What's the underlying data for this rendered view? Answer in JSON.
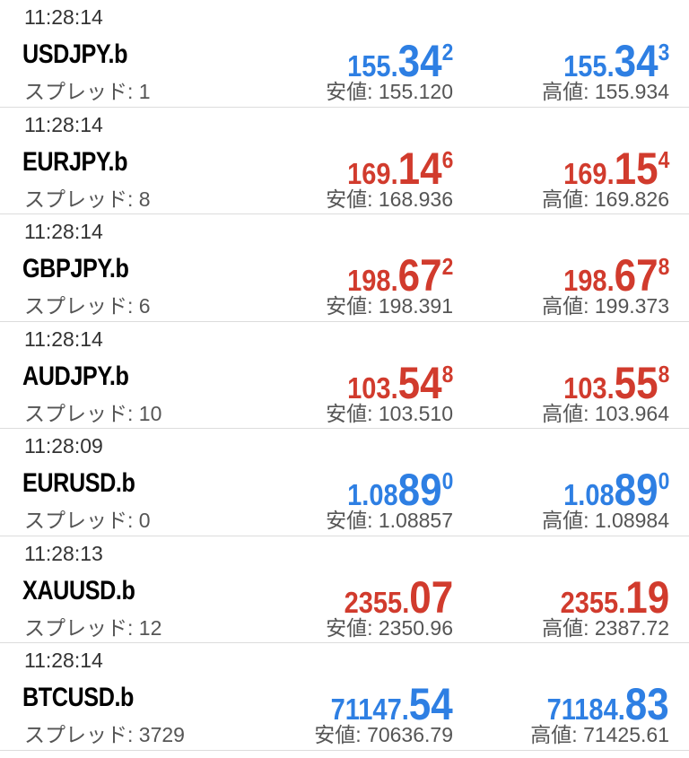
{
  "labels": {
    "spread": "スプレッド: ",
    "low": "安値: ",
    "high": "高値: "
  },
  "colors": {
    "up": "#2e7fe3",
    "down": "#d13b2d"
  },
  "quotes": [
    {
      "time": "11:28:14",
      "symbol": "USDJPY.b",
      "spread": "1",
      "direction": "up",
      "bid": {
        "small": "155.",
        "big": "34",
        "sup": "2"
      },
      "ask": {
        "small": "155.",
        "big": "34",
        "sup": "3"
      },
      "low": "155.120",
      "high": "155.934"
    },
    {
      "time": "11:28:14",
      "symbol": "EURJPY.b",
      "spread": "8",
      "direction": "down",
      "bid": {
        "small": "169.",
        "big": "14",
        "sup": "6"
      },
      "ask": {
        "small": "169.",
        "big": "15",
        "sup": "4"
      },
      "low": "168.936",
      "high": "169.826"
    },
    {
      "time": "11:28:14",
      "symbol": "GBPJPY.b",
      "spread": "6",
      "direction": "down",
      "bid": {
        "small": "198.",
        "big": "67",
        "sup": "2"
      },
      "ask": {
        "small": "198.",
        "big": "67",
        "sup": "8"
      },
      "low": "198.391",
      "high": "199.373"
    },
    {
      "time": "11:28:14",
      "symbol": "AUDJPY.b",
      "spread": "10",
      "direction": "down",
      "bid": {
        "small": "103.",
        "big": "54",
        "sup": "8"
      },
      "ask": {
        "small": "103.",
        "big": "55",
        "sup": "8"
      },
      "low": "103.510",
      "high": "103.964"
    },
    {
      "time": "11:28:09",
      "symbol": "EURUSD.b",
      "spread": "0",
      "direction": "up",
      "bid": {
        "small": "1.08",
        "big": "89",
        "sup": "0"
      },
      "ask": {
        "small": "1.08",
        "big": "89",
        "sup": "0"
      },
      "low": "1.08857",
      "high": "1.08984"
    },
    {
      "time": "11:28:13",
      "symbol": "XAUUSD.b",
      "spread": "12",
      "direction": "down",
      "bid": {
        "small": "2355.",
        "big": "07",
        "sup": ""
      },
      "ask": {
        "small": "2355.",
        "big": "19",
        "sup": ""
      },
      "low": "2350.96",
      "high": "2387.72"
    },
    {
      "time": "11:28:14",
      "symbol": "BTCUSD.b",
      "spread": "3729",
      "direction": "up",
      "bid": {
        "small": "71147.",
        "big": "54",
        "sup": ""
      },
      "ask": {
        "small": "71184.",
        "big": "83",
        "sup": ""
      },
      "low": "70636.79",
      "high": "71425.61"
    }
  ]
}
